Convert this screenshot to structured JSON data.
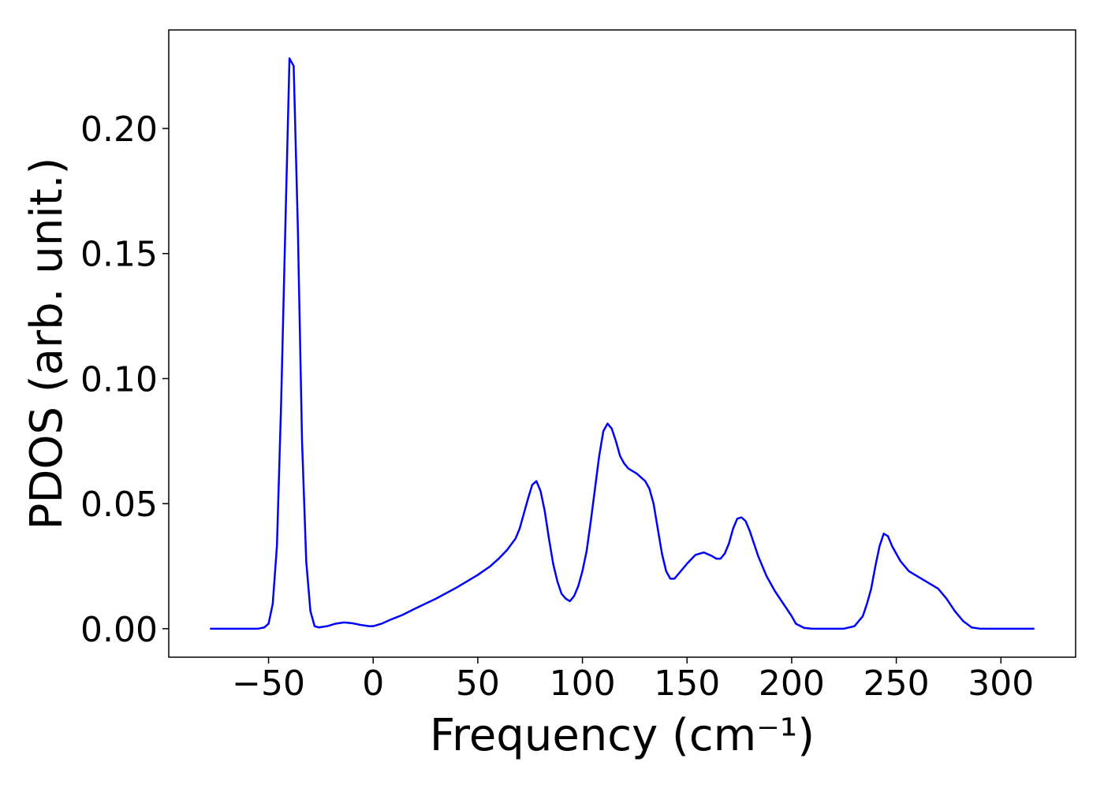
{
  "chart_data": {
    "type": "line",
    "xlabel": "Frequency (cm⁻¹)",
    "ylabel": "PDOS (arb. unit.)",
    "xlim": [
      -97.7,
      335.7
    ],
    "ylim": [
      -0.0114,
      0.2394
    ],
    "xticks": [
      {
        "value": -50,
        "label": "−50"
      },
      0,
      50,
      100,
      150,
      200,
      250,
      300
    ],
    "yticks": [
      {
        "value": 0,
        "label": "0.00"
      },
      0.05,
      {
        "value": 0.1,
        "label": "0.10"
      },
      0.15,
      {
        "value": 0.2,
        "label": "0.20"
      }
    ],
    "grid": false,
    "series": [
      {
        "color": "#0000ff",
        "x": [
          -78,
          -55,
          -52,
          -50,
          -48,
          -46,
          -44,
          -42,
          -40,
          -38,
          -36,
          -34,
          -32,
          -30,
          -28,
          -26,
          -22,
          -18,
          -14,
          -10,
          -6,
          -2,
          0,
          4,
          8,
          14,
          20,
          30,
          40,
          50,
          56,
          60,
          64,
          68,
          70,
          72,
          74,
          76,
          78,
          80,
          82,
          84,
          86,
          88,
          90,
          92,
          94,
          96,
          98,
          100,
          102,
          104,
          106,
          108,
          110,
          112,
          114,
          116,
          118,
          120,
          122,
          126,
          130,
          132,
          134,
          136,
          138,
          140,
          142,
          144,
          146,
          150,
          154,
          158,
          162,
          164,
          166,
          168,
          170,
          172,
          174,
          176,
          178,
          180,
          184,
          188,
          192,
          196,
          200,
          202,
          206,
          210,
          225,
          230,
          234,
          236,
          238,
          240,
          242,
          244,
          246,
          248,
          252,
          256,
          260,
          266,
          270,
          274,
          278,
          282,
          286,
          290,
          316
        ],
        "values": [
          0,
          0,
          0.0005,
          0.002,
          0.01,
          0.033,
          0.09,
          0.16,
          0.228,
          0.225,
          0.16,
          0.075,
          0.027,
          0.007,
          0.001,
          0.0005,
          0.001,
          0.002,
          0.0025,
          0.0022,
          0.0015,
          0.001,
          0.001,
          0.002,
          0.0035,
          0.0055,
          0.008,
          0.012,
          0.0165,
          0.0215,
          0.025,
          0.028,
          0.0315,
          0.036,
          0.04,
          0.046,
          0.052,
          0.0575,
          0.059,
          0.055,
          0.047,
          0.036,
          0.026,
          0.019,
          0.014,
          0.012,
          0.011,
          0.013,
          0.017,
          0.023,
          0.031,
          0.043,
          0.056,
          0.069,
          0.079,
          0.082,
          0.08,
          0.075,
          0.069,
          0.066,
          0.064,
          0.062,
          0.059,
          0.056,
          0.05,
          0.04,
          0.03,
          0.023,
          0.02,
          0.02,
          0.022,
          0.026,
          0.0295,
          0.0305,
          0.029,
          0.028,
          0.028,
          0.03,
          0.034,
          0.04,
          0.044,
          0.0445,
          0.043,
          0.039,
          0.029,
          0.021,
          0.015,
          0.01,
          0.005,
          0.002,
          0.0003,
          0,
          0,
          0.001,
          0.005,
          0.01,
          0.016,
          0.025,
          0.033,
          0.038,
          0.037,
          0.033,
          0.027,
          0.023,
          0.021,
          0.018,
          0.016,
          0.012,
          0.007,
          0.003,
          0.0005,
          0,
          0
        ]
      }
    ]
  }
}
